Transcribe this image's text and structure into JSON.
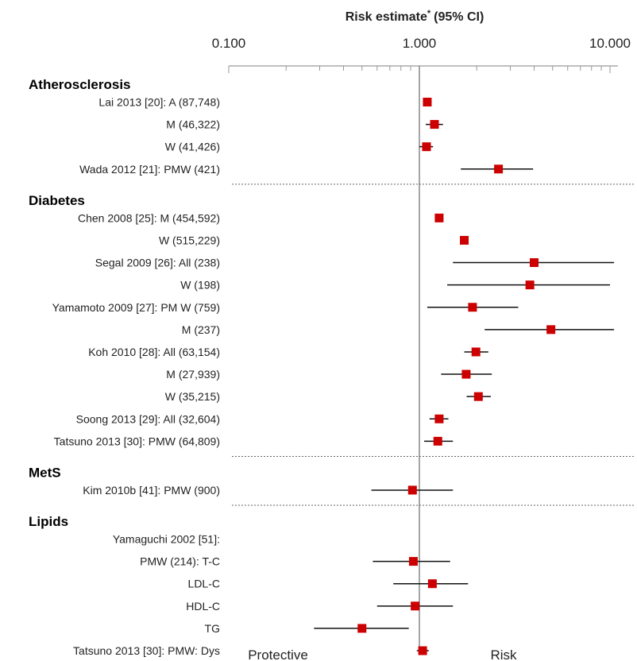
{
  "chart_data": {
    "type": "forest",
    "title": "Risk estimate",
    "title_superscript": "*",
    "title_suffix": "(95% CI)",
    "x_scale": "log",
    "xlim": [
      0.1,
      11
    ],
    "x_ticks": [
      0.1,
      1,
      10
    ],
    "x_tick_labels": [
      "0.100",
      "1.000",
      "10.000"
    ],
    "reference_line": 1,
    "footer_labels": {
      "left": "Protective",
      "right": "Risk"
    },
    "marker_color": "#cc0000",
    "groups": [
      {
        "name": "Atherosclerosis",
        "rows": [
          {
            "label": "Lai 2013 [20]: A (87,748)",
            "estimate": 1.1,
            "ci_low": 1.05,
            "ci_high": 1.16
          },
          {
            "label": "M (46,322)",
            "estimate": 1.2,
            "ci_low": 1.08,
            "ci_high": 1.33
          },
          {
            "label": "W (41,426)",
            "estimate": 1.09,
            "ci_low": 1.0,
            "ci_high": 1.18
          },
          {
            "label": "Wada 2012 [21]: PMW (421)",
            "estimate": 2.6,
            "ci_low": 1.65,
            "ci_high": 3.95
          }
        ]
      },
      {
        "name": "Diabetes",
        "rows": [
          {
            "label": "Chen 2008 [25]:  M (454,592)",
            "estimate": 1.27,
            "ci_low": 1.22,
            "ci_high": 1.33
          },
          {
            "label": "W (515,229)",
            "estimate": 1.72,
            "ci_low": 1.66,
            "ci_high": 1.79
          },
          {
            "label": "Segal 2009 [26]: All (238)",
            "estimate": 4.0,
            "ci_low": 1.5,
            "ci_high": 10.5
          },
          {
            "label": "W (198)",
            "estimate": 3.8,
            "ci_low": 1.4,
            "ci_high": 10.0
          },
          {
            "label": "Yamamoto 2009 [27]: PM W (759)",
            "estimate": 1.9,
            "ci_low": 1.1,
            "ci_high": 3.3
          },
          {
            "label": "M (237)",
            "estimate": 4.9,
            "ci_low": 2.2,
            "ci_high": 10.5
          },
          {
            "label": "Koh 2010 [28]: All (63,154)",
            "estimate": 1.98,
            "ci_low": 1.72,
            "ci_high": 2.3
          },
          {
            "label": "M (27,939)",
            "estimate": 1.76,
            "ci_low": 1.3,
            "ci_high": 2.4
          },
          {
            "label": "W (35,215)",
            "estimate": 2.04,
            "ci_low": 1.77,
            "ci_high": 2.37
          },
          {
            "label": "Soong 2013 [29]: All (32,604)",
            "estimate": 1.27,
            "ci_low": 1.13,
            "ci_high": 1.42
          },
          {
            "label": "Tatsuno 2013 [30]: PMW (64,809)",
            "estimate": 1.25,
            "ci_low": 1.06,
            "ci_high": 1.5
          }
        ]
      },
      {
        "name": "MetS",
        "rows": [
          {
            "label": "Kim 2010b [41]: PMW (900)",
            "estimate": 0.92,
            "ci_low": 0.56,
            "ci_high": 1.5
          }
        ]
      },
      {
        "name": "Lipids",
        "rows": [
          {
            "label": "Yamaguchi 2002 [51]:",
            "estimate": null,
            "ci_low": null,
            "ci_high": null
          },
          {
            "label": "PMW (214): T-C",
            "estimate": 0.93,
            "ci_low": 0.57,
            "ci_high": 1.45
          },
          {
            "label": "LDL-C",
            "estimate": 1.17,
            "ci_low": 0.73,
            "ci_high": 1.8
          },
          {
            "label": "HDL-C",
            "estimate": 0.95,
            "ci_low": 0.6,
            "ci_high": 1.5
          },
          {
            "label": "TG",
            "estimate": 0.5,
            "ci_low": 0.28,
            "ci_high": 0.88
          },
          {
            "label": "Tatsuno 2013 [30]: PMW: Dys",
            "estimate": 1.04,
            "ci_low": 0.97,
            "ci_high": 1.12
          }
        ]
      }
    ]
  }
}
